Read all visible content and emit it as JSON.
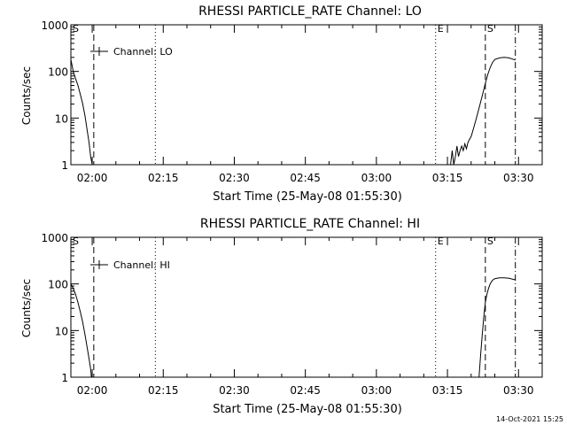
{
  "footer": {
    "timestamp": "14-Oct-2021 15:25"
  },
  "chart_data": [
    {
      "type": "line",
      "title": "RHESSI PARTICLE_RATE Channel: LO",
      "xlabel": "Start Time (25-May-08 01:55:30)",
      "ylabel": "Counts/sec",
      "yscale": "log",
      "ylim": [
        1,
        1000
      ],
      "yticks": [
        "1",
        "10",
        "100",
        "1000"
      ],
      "xlim": [
        "01:55:30",
        "03:35:00"
      ],
      "xticks": [
        "02:00",
        "02:15",
        "02:30",
        "02:45",
        "03:00",
        "03:15",
        "03:30"
      ],
      "legend": {
        "placement": "top-left",
        "entries": [
          "Channel: LO"
        ]
      },
      "markers": [
        {
          "label": "S",
          "time": "01:55:30",
          "style": "solid"
        },
        {
          "label": "",
          "time": "02:00:20",
          "style": "dashed"
        },
        {
          "label": "",
          "time": "02:13:20",
          "style": "dotted"
        },
        {
          "label": "E",
          "time": "03:12:30",
          "style": "dotted"
        },
        {
          "label": "S",
          "time": "03:23:00",
          "style": "dashed"
        },
        {
          "label": "",
          "time": "03:29:20",
          "style": "dash-dot"
        }
      ],
      "series": [
        {
          "name": "Channel: LO",
          "segments": [
            [
              [
                "01:55:30",
                180
              ],
              [
                "01:56:00",
                100
              ],
              [
                "01:56:30",
                70
              ],
              [
                "01:57:00",
                50
              ],
              [
                "01:57:30",
                32
              ],
              [
                "01:58:00",
                20
              ],
              [
                "01:58:30",
                11
              ],
              [
                "01:59:00",
                5
              ],
              [
                "01:59:20",
                3
              ],
              [
                "01:59:40",
                1.5
              ],
              [
                "02:00:00",
                1
              ]
            ],
            [
              [
                "03:15:40",
                1
              ],
              [
                "03:16:00",
                2
              ],
              [
                "03:16:20",
                1
              ],
              [
                "03:16:40",
                1.5
              ],
              [
                "03:17:00",
                2.5
              ],
              [
                "03:17:20",
                1.5
              ],
              [
                "03:17:40",
                2
              ],
              [
                "03:18:00",
                2.5
              ],
              [
                "03:18:20",
                2
              ],
              [
                "03:18:40",
                2.8
              ],
              [
                "03:19:00",
                2.2
              ],
              [
                "03:19:20",
                3
              ],
              [
                "03:19:40",
                3.5
              ],
              [
                "03:20:00",
                4
              ],
              [
                "03:20:30",
                6
              ],
              [
                "03:21:00",
                9
              ],
              [
                "03:21:30",
                14
              ],
              [
                "03:22:00",
                22
              ],
              [
                "03:22:30",
                35
              ],
              [
                "03:23:00",
                55
              ],
              [
                "03:23:30",
                85
              ],
              [
                "03:24:00",
                120
              ],
              [
                "03:24:30",
                155
              ],
              [
                "03:25:00",
                180
              ],
              [
                "03:26:00",
                195
              ],
              [
                "03:27:00",
                200
              ],
              [
                "03:28:00",
                195
              ],
              [
                "03:29:00",
                180
              ],
              [
                "03:29:20",
                175
              ]
            ]
          ]
        }
      ]
    },
    {
      "type": "line",
      "title": "RHESSI PARTICLE_RATE Channel: HI",
      "xlabel": "Start Time (25-May-08 01:55:30)",
      "ylabel": "Counts/sec",
      "yscale": "log",
      "ylim": [
        1,
        1000
      ],
      "yticks": [
        "1",
        "10",
        "100",
        "1000"
      ],
      "xlim": [
        "01:55:30",
        "03:35:00"
      ],
      "xticks": [
        "02:00",
        "02:15",
        "02:30",
        "02:45",
        "03:00",
        "03:15",
        "03:30"
      ],
      "legend": {
        "placement": "top-left",
        "entries": [
          "Channel: HI"
        ]
      },
      "markers": [
        {
          "label": "S",
          "time": "01:55:30",
          "style": "solid"
        },
        {
          "label": "",
          "time": "02:00:20",
          "style": "dashed"
        },
        {
          "label": "",
          "time": "02:13:20",
          "style": "dotted"
        },
        {
          "label": "E",
          "time": "03:12:30",
          "style": "dotted"
        },
        {
          "label": "S",
          "time": "03:23:00",
          "style": "dashed"
        },
        {
          "label": "",
          "time": "03:29:20",
          "style": "dash-dot"
        }
      ],
      "series": [
        {
          "name": "Channel: HI",
          "segments": [
            [
              [
                "01:55:30",
                100
              ],
              [
                "01:56:00",
                80
              ],
              [
                "01:56:30",
                60
              ],
              [
                "01:57:00",
                40
              ],
              [
                "01:57:30",
                25
              ],
              [
                "01:58:00",
                15
              ],
              [
                "01:58:30",
                8
              ],
              [
                "01:59:00",
                4
              ],
              [
                "01:59:20",
                2.5
              ],
              [
                "01:59:40",
                1.5
              ],
              [
                "01:59:50",
                1
              ]
            ],
            [
              [
                "03:21:40",
                1
              ],
              [
                "03:22:00",
                3
              ],
              [
                "03:22:20",
                8
              ],
              [
                "03:22:40",
                20
              ],
              [
                "03:23:00",
                40
              ],
              [
                "03:23:20",
                60
              ],
              [
                "03:23:40",
                80
              ],
              [
                "03:24:00",
                100
              ],
              [
                "03:24:30",
                120
              ],
              [
                "03:25:00",
                130
              ],
              [
                "03:26:00",
                135
              ],
              [
                "03:27:00",
                135
              ],
              [
                "03:28:00",
                132
              ],
              [
                "03:29:00",
                125
              ],
              [
                "03:29:20",
                122
              ]
            ]
          ]
        }
      ]
    }
  ]
}
